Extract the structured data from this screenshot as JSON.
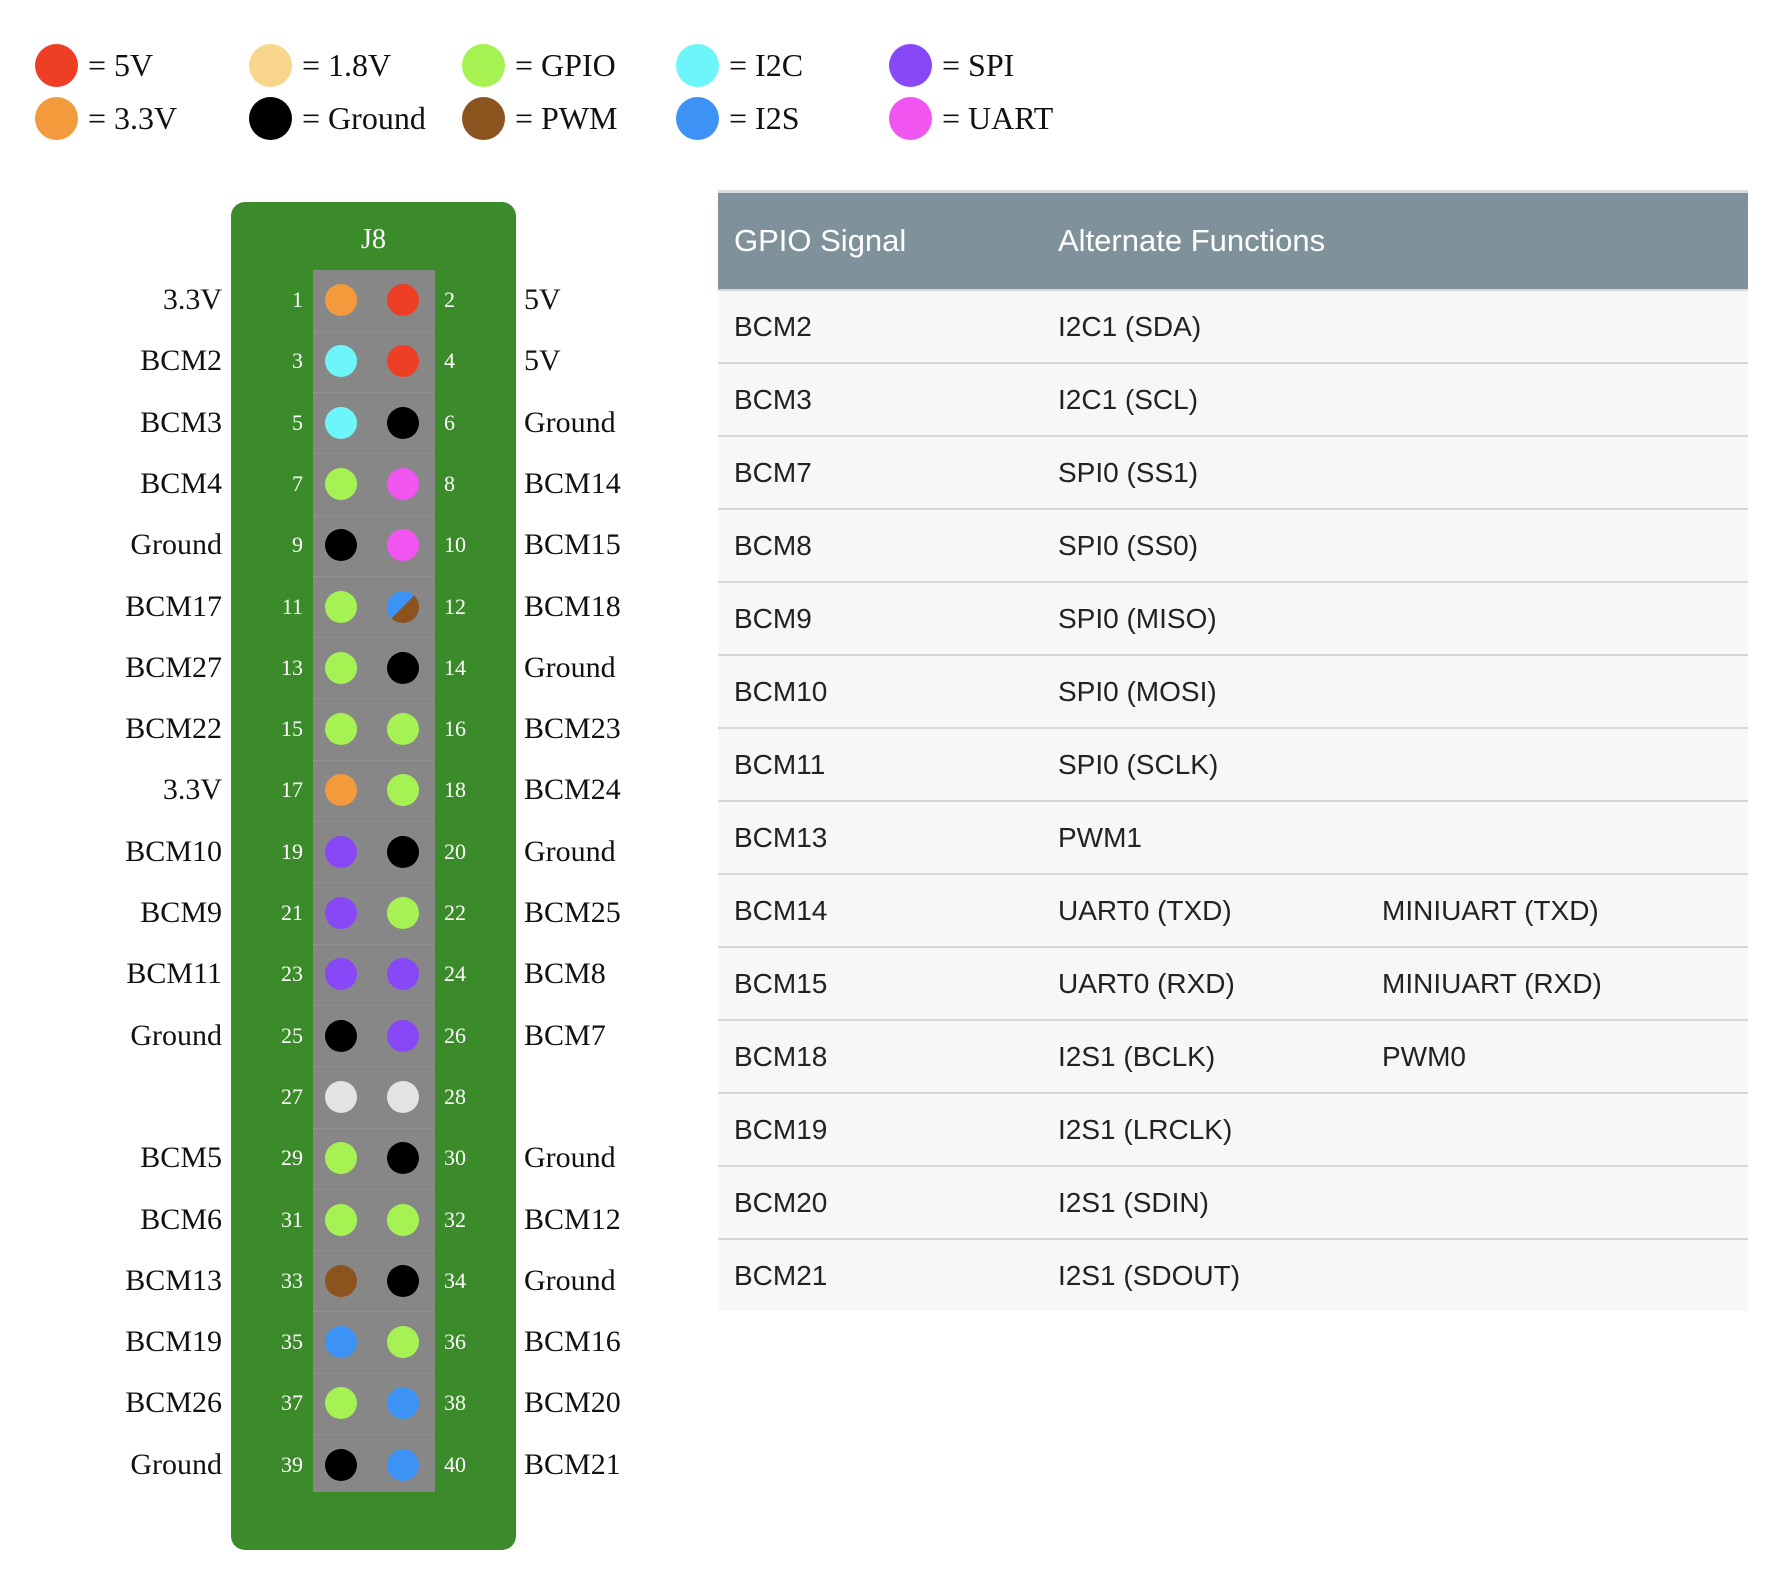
{
  "legend": [
    {
      "label": "= 5V",
      "color": "#ee3f25"
    },
    {
      "label": "= 3.3V",
      "color": "#f39a3c"
    },
    {
      "label": "= 1.8V",
      "color": "#f7d68c"
    },
    {
      "label": "= Ground",
      "color": "#000000"
    },
    {
      "label": "= GPIO",
      "color": "#a6f252"
    },
    {
      "label": "= PWM",
      "color": "#8b531e"
    },
    {
      "label": "= I2C",
      "color": "#6cf6fa"
    },
    {
      "label": "= I2S",
      "color": "#3d93f5"
    },
    {
      "label": "= SPI",
      "color": "#8848f8"
    },
    {
      "label": "= UART",
      "color": "#f055f0"
    }
  ],
  "header": {
    "title": "J8",
    "pins": [
      {
        "num": "1",
        "label": "3.3V",
        "color": "#f39a3c"
      },
      {
        "num": "2",
        "label": "5V",
        "color": "#ee3f25"
      },
      {
        "num": "3",
        "label": "BCM2",
        "color": "#6cf6fa"
      },
      {
        "num": "4",
        "label": "5V",
        "color": "#ee3f25"
      },
      {
        "num": "5",
        "label": "BCM3",
        "color": "#6cf6fa"
      },
      {
        "num": "6",
        "label": "Ground",
        "color": "#000000"
      },
      {
        "num": "7",
        "label": "BCM4",
        "color": "#a6f252"
      },
      {
        "num": "8",
        "label": "BCM14",
        "color": "#f055f0"
      },
      {
        "num": "9",
        "label": "Ground",
        "color": "#000000"
      },
      {
        "num": "10",
        "label": "BCM15",
        "color": "#f055f0"
      },
      {
        "num": "11",
        "label": "BCM17",
        "color": "#a6f252"
      },
      {
        "num": "12",
        "label": "BCM18",
        "color": "split:#3d93f5:#8b531e"
      },
      {
        "num": "13",
        "label": "BCM27",
        "color": "#a6f252"
      },
      {
        "num": "14",
        "label": "Ground",
        "color": "#000000"
      },
      {
        "num": "15",
        "label": "BCM22",
        "color": "#a6f252"
      },
      {
        "num": "16",
        "label": "BCM23",
        "color": "#a6f252"
      },
      {
        "num": "17",
        "label": "3.3V",
        "color": "#f39a3c"
      },
      {
        "num": "18",
        "label": "BCM24",
        "color": "#a6f252"
      },
      {
        "num": "19",
        "label": "BCM10",
        "color": "#8848f8"
      },
      {
        "num": "20",
        "label": "Ground",
        "color": "#000000"
      },
      {
        "num": "21",
        "label": "BCM9",
        "color": "#8848f8"
      },
      {
        "num": "22",
        "label": "BCM25",
        "color": "#a6f252"
      },
      {
        "num": "23",
        "label": "BCM11",
        "color": "#8848f8"
      },
      {
        "num": "24",
        "label": "BCM8",
        "color": "#8848f8"
      },
      {
        "num": "25",
        "label": "Ground",
        "color": "#000000"
      },
      {
        "num": "26",
        "label": "BCM7",
        "color": "#8848f8"
      },
      {
        "num": "27",
        "label": "",
        "color": "#e3e3e3"
      },
      {
        "num": "28",
        "label": "",
        "color": "#e3e3e3"
      },
      {
        "num": "29",
        "label": "BCM5",
        "color": "#a6f252"
      },
      {
        "num": "30",
        "label": "Ground",
        "color": "#000000"
      },
      {
        "num": "31",
        "label": "BCM6",
        "color": "#a6f252"
      },
      {
        "num": "32",
        "label": "BCM12",
        "color": "#a6f252"
      },
      {
        "num": "33",
        "label": "BCM13",
        "color": "#8b531e"
      },
      {
        "num": "34",
        "label": "Ground",
        "color": "#000000"
      },
      {
        "num": "35",
        "label": "BCM19",
        "color": "#3d93f5"
      },
      {
        "num": "36",
        "label": "BCM16",
        "color": "#a6f252"
      },
      {
        "num": "37",
        "label": "BCM26",
        "color": "#a6f252"
      },
      {
        "num": "38",
        "label": "BCM20",
        "color": "#3d93f5"
      },
      {
        "num": "39",
        "label": "Ground",
        "color": "#000000"
      },
      {
        "num": "40",
        "label": "BCM21",
        "color": "#3d93f5"
      }
    ]
  },
  "table": {
    "headers": [
      "GPIO Signal",
      "Alternate Functions"
    ],
    "rows": [
      [
        "BCM2",
        "I2C1 (SDA)",
        ""
      ],
      [
        "BCM3",
        "I2C1 (SCL)",
        ""
      ],
      [
        "BCM7",
        "SPI0 (SS1)",
        ""
      ],
      [
        "BCM8",
        "SPI0 (SS0)",
        ""
      ],
      [
        "BCM9",
        "SPI0 (MISO)",
        ""
      ],
      [
        "BCM10",
        "SPI0 (MOSI)",
        ""
      ],
      [
        "BCM11",
        "SPI0 (SCLK)",
        ""
      ],
      [
        "BCM13",
        "PWM1",
        ""
      ],
      [
        "BCM14",
        "UART0 (TXD)",
        "MINIUART (TXD)"
      ],
      [
        "BCM15",
        "UART0 (RXD)",
        "MINIUART (RXD)"
      ],
      [
        "BCM18",
        "I2S1 (BCLK)",
        "PWM0"
      ],
      [
        "BCM19",
        "I2S1 (LRCLK)",
        ""
      ],
      [
        "BCM20",
        "I2S1 (SDIN)",
        ""
      ],
      [
        "BCM21",
        "I2S1 (SDOUT)",
        ""
      ]
    ]
  }
}
